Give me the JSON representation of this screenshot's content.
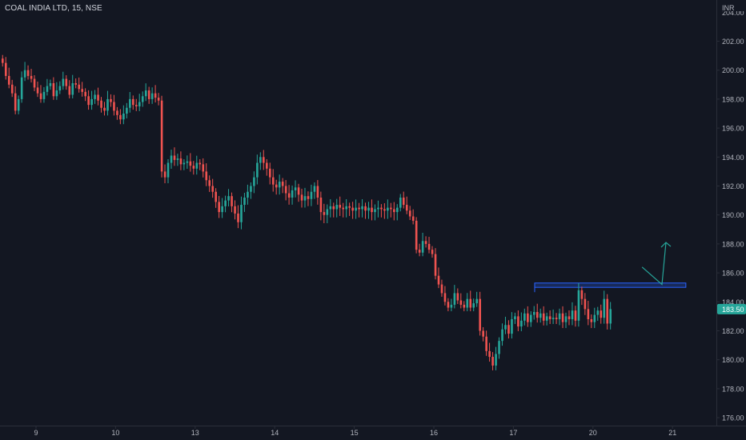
{
  "header": {
    "symbol_line": "COAL INDIA LTD, 15, NSE",
    "currency": "INR"
  },
  "colors": {
    "background": "#131722",
    "up": "#26a69a",
    "down": "#ef5350",
    "axis_text": "#b2b5be",
    "axis_line": "#2a2e39",
    "price_tag": "#26a69a",
    "resistance": "#2962ff",
    "arrow": "#26a69a"
  },
  "chart_data": {
    "type": "candlestick",
    "title": "COAL INDIA LTD, 15, NSE",
    "currency": "INR",
    "ylim": [
      175,
      205
    ],
    "y_ticks": [
      "176.00",
      "178.00",
      "180.00",
      "182.00",
      "184.00",
      "186.00",
      "188.00",
      "190.00",
      "192.00",
      "194.00",
      "196.00",
      "198.00",
      "200.00",
      "202.00"
    ],
    "top_tick_partial": "204.00",
    "x_labels": [
      {
        "label": "9",
        "session": 0
      },
      {
        "label": "10",
        "session": 1
      },
      {
        "label": "13",
        "session": 2
      },
      {
        "label": "14",
        "session": 3
      },
      {
        "label": "15",
        "session": 4
      },
      {
        "label": "16",
        "session": 5
      },
      {
        "label": "17",
        "session": 6
      },
      {
        "label": "20",
        "session": 7
      },
      {
        "label": "21",
        "session": 8
      }
    ],
    "last_price": "183.50",
    "resistance_zone": {
      "low": 185.0,
      "high": 185.3,
      "from_session": 6.7,
      "to_session": 8.6
    },
    "projection_arrow": [
      {
        "session": 8.05,
        "price": 186.4
      },
      {
        "session": 8.3,
        "price": 185.2
      },
      {
        "session": 8.35,
        "price": 188.1
      }
    ],
    "session_closes": [
      [
        200.5,
        199.6,
        199.0,
        198.4,
        197.2,
        198.0,
        199.5,
        200.0,
        199.6,
        199.4,
        198.8,
        198.4,
        198.0,
        198.5,
        198.9,
        199.1,
        198.2,
        198.6,
        198.9,
        199.4,
        198.9,
        198.3,
        199.1,
        199.0,
        198.7
      ],
      [
        198.5,
        198.2,
        197.6,
        198.0,
        198.3,
        197.9,
        197.4,
        197.2,
        198.0,
        197.8,
        197.2,
        196.9,
        196.6,
        197.0,
        197.4,
        198.0,
        197.6,
        197.5,
        197.8,
        198.2,
        198.6,
        198.0,
        198.4,
        198.1,
        197.9
      ],
      [
        193.0,
        192.6,
        193.6,
        194.1,
        193.8,
        193.9,
        193.5,
        193.6,
        193.7,
        193.4,
        193.2,
        193.6,
        193.5,
        193.0,
        192.4,
        192.0,
        191.6,
        190.9,
        190.2,
        190.6,
        191.0,
        191.3,
        190.6,
        190.1,
        189.5
      ],
      [
        190.7,
        191.2,
        191.6,
        192.0,
        192.6,
        193.6,
        194.0,
        193.6,
        193.2,
        192.6,
        192.1,
        191.9,
        192.3,
        192.0,
        191.5,
        191.2,
        191.7,
        191.9,
        191.4,
        191.0,
        191.3,
        191.1,
        191.6,
        192.0,
        191.2
      ],
      [
        190.2,
        190.0,
        190.4,
        190.6,
        190.4,
        190.7,
        190.5,
        190.4,
        190.6,
        190.5,
        190.3,
        190.5,
        190.4,
        190.6,
        190.3,
        190.5,
        190.2,
        190.4,
        190.5,
        190.4,
        190.3,
        190.5,
        190.4,
        190.2,
        190.5
      ],
      [
        191.2,
        190.7,
        190.3,
        189.9,
        189.6,
        187.6,
        187.4,
        188.2,
        188.0,
        187.6,
        187.3,
        185.8,
        185.2,
        184.6,
        184.0,
        183.6,
        183.8,
        184.6,
        184.1,
        183.8,
        183.6,
        184.2,
        183.6,
        183.9,
        184.2
      ],
      [
        182.0,
        181.6,
        180.6,
        180.2,
        179.6,
        180.4,
        181.3,
        182.1,
        182.4,
        181.8,
        182.8,
        183.0,
        182.3,
        182.7,
        183.2,
        182.6,
        183.1,
        183.3,
        182.9,
        183.2,
        182.7,
        183.0,
        182.8,
        182.9,
        182.8
      ],
      [
        183.2,
        182.6,
        183.0,
        182.8,
        183.4,
        182.7,
        184.8,
        184.2,
        183.5,
        182.8,
        182.6,
        183.1,
        183.4,
        182.9,
        184.2,
        182.5,
        183.5
      ]
    ]
  }
}
